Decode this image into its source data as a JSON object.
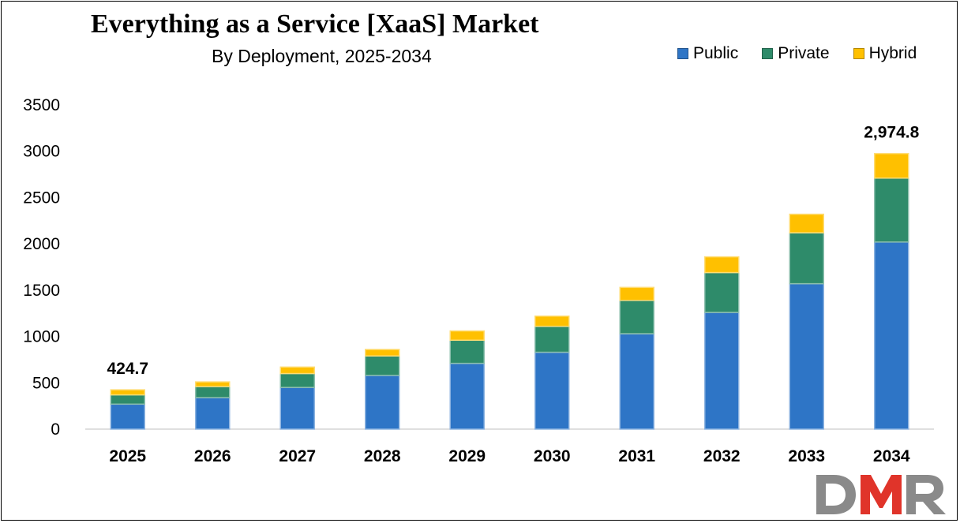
{
  "title": "Everything as a Service [XaaS] Market",
  "subtitle": "By Deployment, 2025-2034",
  "colors": {
    "public": "#2E75C6",
    "private": "#2E8B6A",
    "hybrid": "#FFC000"
  },
  "chart_data": {
    "type": "bar",
    "stacked": true,
    "categories": [
      "2025",
      "2026",
      "2027",
      "2028",
      "2029",
      "2030",
      "2031",
      "2032",
      "2033",
      "2034"
    ],
    "series": [
      {
        "name": "Public",
        "values": [
          270,
          340,
          450,
          580,
          710,
          830,
          1030,
          1260,
          1570,
          2020
        ]
      },
      {
        "name": "Private",
        "values": [
          100,
          120,
          150,
          210,
          250,
          280,
          360,
          430,
          550,
          690
        ]
      },
      {
        "name": "Hybrid",
        "values": [
          54.7,
          50,
          70,
          70,
          100,
          110,
          140,
          170,
          200,
          264.8
        ]
      }
    ],
    "data_labels": [
      {
        "category": "2025",
        "text": "424.7"
      },
      {
        "category": "2034",
        "text": "2,974.8"
      }
    ],
    "yticks": [
      "0",
      "500",
      "1000",
      "1500",
      "2000",
      "2500",
      "3000",
      "3500"
    ],
    "ylim": [
      0,
      3500
    ],
    "grid": false,
    "legend_position": "top-right"
  },
  "logo": {
    "text": "DMR"
  }
}
